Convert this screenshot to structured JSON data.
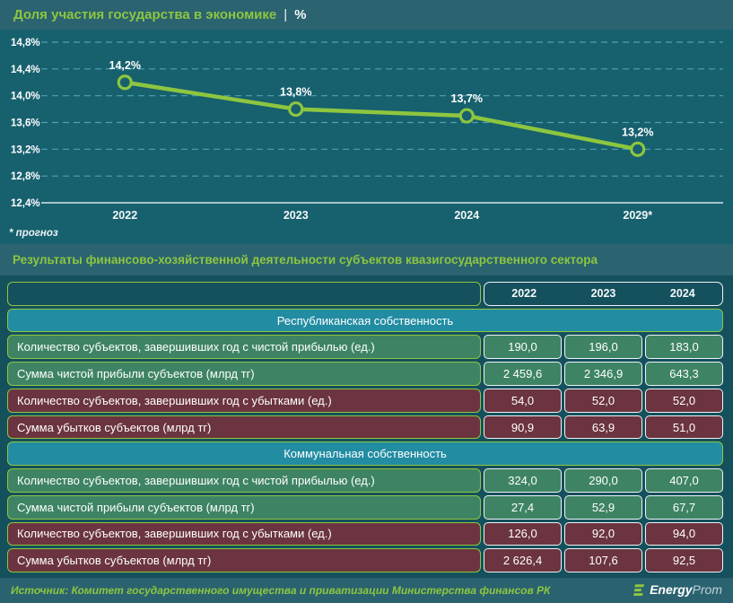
{
  "chart_data": {
    "type": "line",
    "title": "Доля участия государства в экономике",
    "title_separator": "|",
    "unit": "%",
    "categories": [
      "2022",
      "2023",
      "2024",
      "2029*"
    ],
    "values": [
      14.2,
      13.8,
      13.7,
      13.2
    ],
    "point_labels": [
      "14,2%",
      "13,8%",
      "13,7%",
      "13,2%"
    ],
    "y_ticks": [
      14.8,
      14.4,
      14.0,
      13.6,
      13.2,
      12.8,
      12.4
    ],
    "y_tick_labels": [
      "14,8%",
      "14,4%",
      "14,0%",
      "13,6%",
      "13,2%",
      "12,8%",
      "12,4%"
    ],
    "ylim": [
      12.4,
      14.8
    ],
    "grid": "dashed-horizontal",
    "legend": "none",
    "line_color": "#8DC63F",
    "footnote": "* прогноз"
  },
  "table": {
    "title": "Результаты финансово-хозяйственной деятельности субъектов квазигосударственного сектора",
    "columns": [
      "2022",
      "2023",
      "2024"
    ],
    "sections": [
      {
        "name": "Республиканская собственность",
        "rows": [
          {
            "label": "Количество субъектов, завершивших год с чистой прибылью (ед.)",
            "values": [
              "190,0",
              "196,0",
              "183,0"
            ],
            "tone": "positive"
          },
          {
            "label": "Сумма чистой прибыли субъектов (млрд тг)",
            "values": [
              "2 459,6",
              "2 346,9",
              "643,3"
            ],
            "tone": "positive"
          },
          {
            "label": "Количество субъектов, завершивших год с убытками (ед.)",
            "values": [
              "54,0",
              "52,0",
              "52,0"
            ],
            "tone": "negative"
          },
          {
            "label": "Сумма убытков субъектов (млрд тг)",
            "values": [
              "90,9",
              "63,9",
              "51,0"
            ],
            "tone": "negative"
          }
        ]
      },
      {
        "name": "Коммунальная собственность",
        "rows": [
          {
            "label": "Количество субъектов, завершивших год с чистой прибылью (ед.)",
            "values": [
              "324,0",
              "290,0",
              "407,0"
            ],
            "tone": "positive"
          },
          {
            "label": "Сумма чистой прибыли субъектов (млрд тг)",
            "values": [
              "27,4",
              "52,9",
              "67,7"
            ],
            "tone": "positive"
          },
          {
            "label": "Количество субъектов, завершивших год с убытками (ед.)",
            "values": [
              "126,0",
              "92,0",
              "94,0"
            ],
            "tone": "negative"
          },
          {
            "label": "Сумма убытков субъектов (млрд тг)",
            "values": [
              "2 626,4",
              "107,6",
              "92,5"
            ],
            "tone": "negative"
          }
        ]
      }
    ]
  },
  "footer": {
    "source": "Источник: Комитет государственного имущества и приватизации Министерства финансов РК",
    "logo_bold": "Energy",
    "logo_light": "Prom",
    "logo_icon": "energyprom-logo-icon"
  },
  "colors": {
    "accent_green": "#8DC63F",
    "chart_background": "#17606E",
    "bar_background": "#2B6371",
    "table_background": "#15505D",
    "grid_dash": "#4FA0B5",
    "row_positive": "#3E8464",
    "row_negative": "#6B3440",
    "row_section": "#218CA2"
  }
}
